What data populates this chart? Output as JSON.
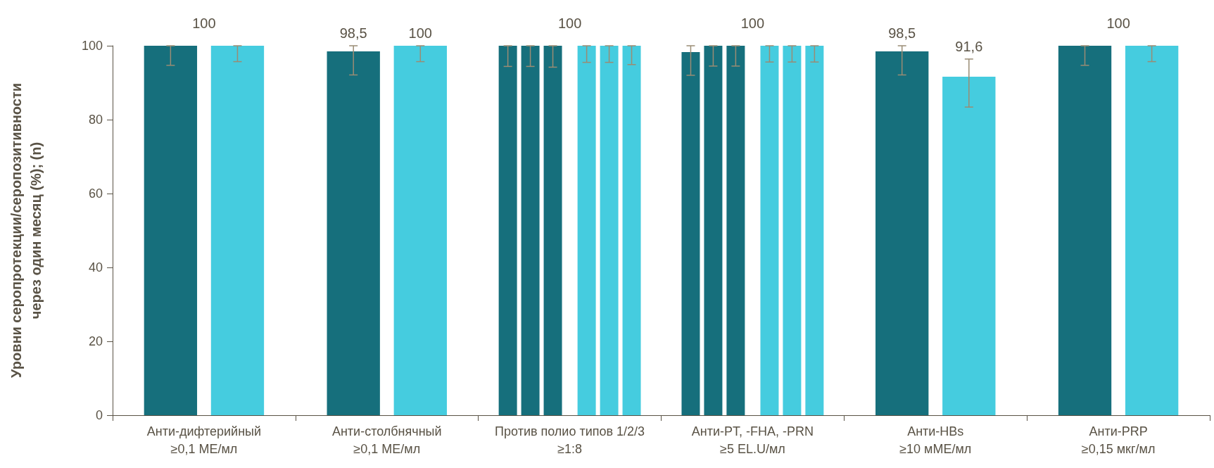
{
  "chart_data": {
    "type": "bar",
    "ylabel": "Уровни серопротекции/серопозитивности\nчерез один месяц (%); (n)",
    "categories": [
      "Анти-дифтерийный\n≥0,1 МЕ/мл",
      "Анти-столбнячный\n≥0,1 МЕ/мл",
      "Против полио типов 1/2/3\n≥1:8",
      "Анти-PT, -FHA, -PRN\n≥5 EL.U/мл",
      "Анти-HBs\n≥10 мМЕ/мл",
      "Анти-PRP\n≥0,15 мкг/мл"
    ],
    "series": [
      {
        "color": "#166f7c",
        "values": [
          100,
          98.5,
          100,
          98.3,
          98.5,
          100
        ],
        "errors": [
          [
            94.7,
            100
          ],
          [
            92.1,
            100
          ],
          [
            94.4,
            100
          ],
          [
            92.0,
            100
          ],
          [
            92.1,
            100
          ],
          [
            94.7,
            100
          ]
        ],
        "value_labels": [
          null,
          "98,5",
          null,
          null,
          "98,5",
          null
        ]
      },
      {
        "color": "#166f7c",
        "values": [
          null,
          null,
          100,
          100,
          null,
          null
        ],
        "errors": [
          null,
          null,
          [
            94.4,
            100
          ],
          [
            94.5,
            100
          ],
          null,
          null
        ]
      },
      {
        "color": "#166f7c",
        "values": [
          null,
          null,
          100,
          100,
          null,
          null
        ],
        "errors": [
          null,
          null,
          [
            94.2,
            100
          ],
          [
            94.5,
            100
          ],
          null,
          null
        ]
      },
      {
        "color": "#45ccdf",
        "values": [
          100,
          100,
          100,
          100,
          91.6,
          100
        ],
        "errors": [
          [
            95.7,
            100
          ],
          [
            95.7,
            100
          ],
          [
            95.5,
            100
          ],
          [
            95.6,
            100
          ],
          [
            83.4,
            96.4
          ],
          [
            95.7,
            100
          ]
        ],
        "value_labels": [
          "100",
          "100",
          "100",
          "100",
          "91,6",
          "100"
        ]
      },
      {
        "color": "#45ccdf",
        "values": [
          null,
          null,
          100,
          100,
          null,
          null
        ],
        "errors": [
          null,
          null,
          [
            95.5,
            100
          ],
          [
            95.6,
            100
          ],
          null,
          null
        ]
      },
      {
        "color": "#45ccdf",
        "values": [
          null,
          null,
          100,
          100,
          null,
          null
        ],
        "errors": [
          null,
          null,
          [
            94.9,
            100
          ],
          [
            95.6,
            100
          ],
          null,
          null
        ]
      }
    ],
    "ylim": [
      0,
      100
    ],
    "yticks": [
      0,
      20,
      40,
      60,
      80,
      100
    ],
    "grid": false
  }
}
